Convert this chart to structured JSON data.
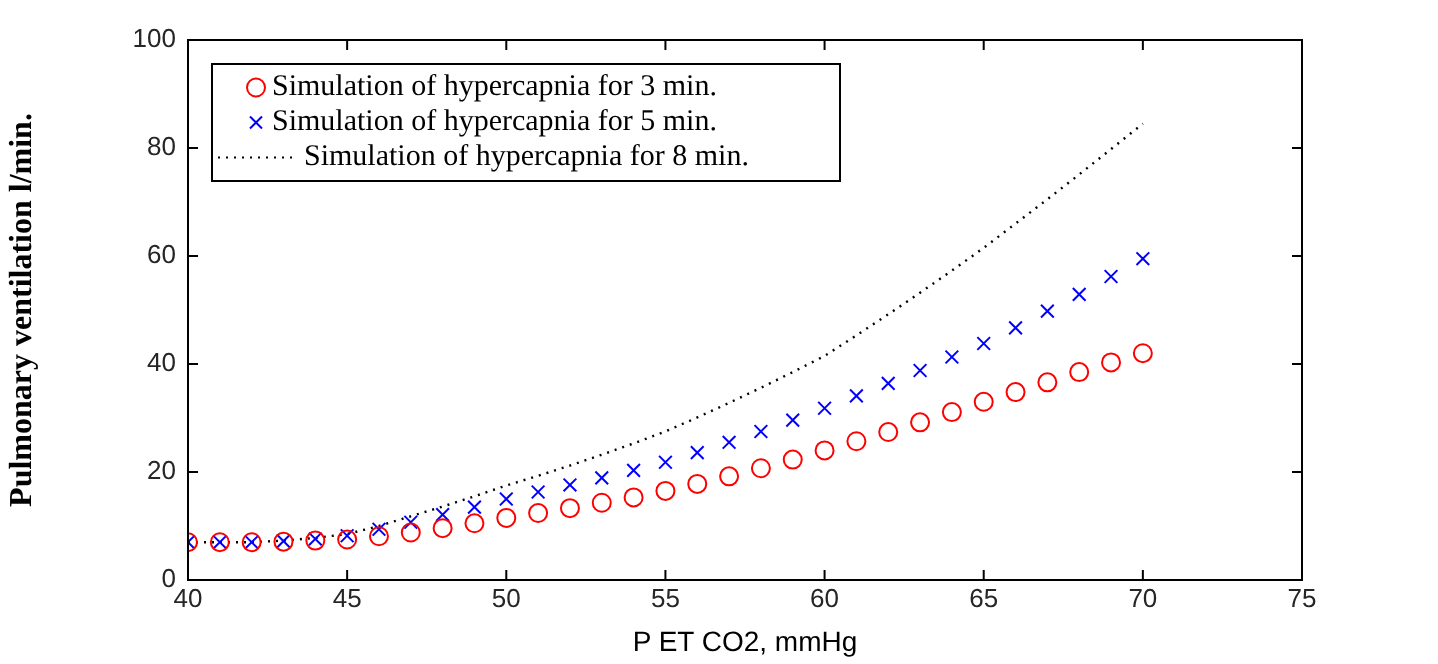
{
  "chart_data": {
    "type": "scatter",
    "xlabel": "P ET CO2, mmHg",
    "ylabel": "Pulmonary ventilation l/min.",
    "x": [
      40,
      41,
      42,
      43,
      44,
      45,
      46,
      47,
      48,
      49,
      50,
      51,
      52,
      53,
      54,
      55,
      56,
      57,
      58,
      59,
      60,
      61,
      62,
      63,
      64,
      65,
      66,
      67,
      68,
      69,
      70
    ],
    "xlim": [
      40,
      75
    ],
    "xticks": [
      40,
      45,
      50,
      55,
      60,
      65,
      70,
      75
    ],
    "ylim": [
      0,
      100
    ],
    "yticks": [
      0,
      20,
      40,
      60,
      80,
      100
    ],
    "grid": false,
    "legend": "top left",
    "series": [
      {
        "name": "Simulation of hypercapnia for 3 min.",
        "marker": "circle",
        "color": "#ff0000",
        "values": [
          7,
          7,
          7,
          7.1,
          7.3,
          7.5,
          8.1,
          8.8,
          9.6,
          10.5,
          11.5,
          12.4,
          13.3,
          14.3,
          15.3,
          16.5,
          17.8,
          19.2,
          20.7,
          22.3,
          24,
          25.7,
          27.4,
          29.2,
          31.1,
          33,
          34.8,
          36.6,
          38.5,
          40.3,
          42
        ]
      },
      {
        "name": "Simulation of hypercapnia for 5 min.",
        "type": "scatter",
        "marker": "cross",
        "color": "#0000ff",
        "values": [
          7,
          7,
          7,
          7.2,
          7.6,
          8.2,
          9.4,
          10.7,
          12.1,
          13.5,
          15,
          16.3,
          17.6,
          18.9,
          20.3,
          21.8,
          23.6,
          25.5,
          27.5,
          29.6,
          31.8,
          34.1,
          36.4,
          38.8,
          41.3,
          43.8,
          46.7,
          49.8,
          52.9,
          56.2,
          59.5
        ]
      },
      {
        "name": "Simulation of hypercapnia for 8 min.",
        "type": "line",
        "line_style": "dotted",
        "color": "#000000",
        "values": [
          7,
          7,
          7,
          7.3,
          7.8,
          8.5,
          10,
          11.8,
          13.6,
          15.5,
          17.5,
          19.3,
          21.2,
          23.2,
          25.3,
          27.5,
          30.1,
          32.8,
          35.6,
          38.5,
          41.5,
          45.3,
          49.2,
          53.2,
          57.3,
          61.5,
          66,
          70.5,
          75.1,
          79.8,
          84.5
        ]
      }
    ]
  }
}
